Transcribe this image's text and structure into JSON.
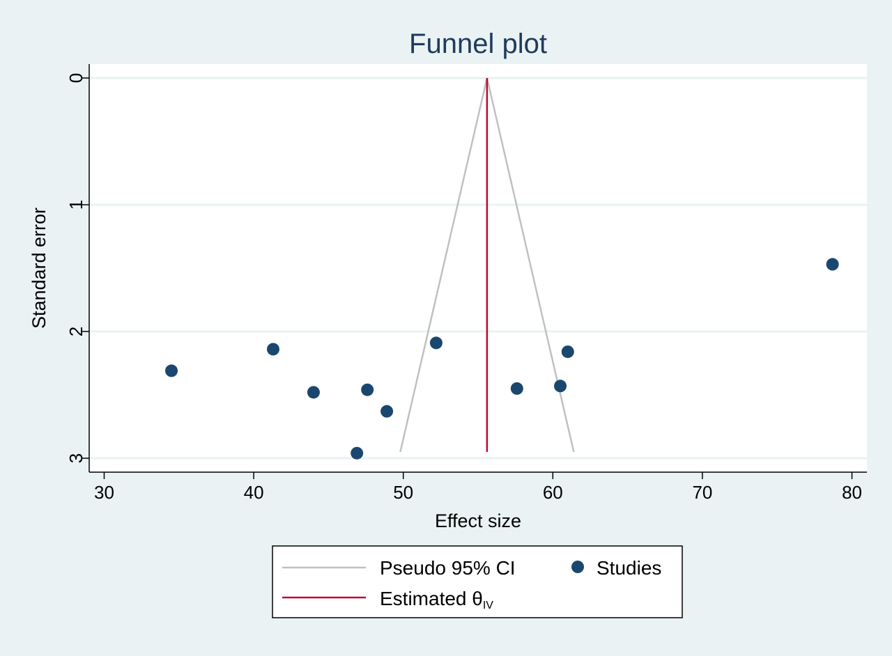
{
  "chart_data": {
    "type": "scatter",
    "title": "Funnel plot",
    "xlabel": "Effect size",
    "ylabel": "Standard error",
    "xlim": [
      29,
      81
    ],
    "ylim": [
      3.1,
      0
    ],
    "y_reversed": true,
    "x_ticks": [
      30,
      40,
      50,
      60,
      70,
      80
    ],
    "y_ticks": [
      0,
      1,
      2,
      3
    ],
    "grid": "horizontal",
    "legend_position": "bottom",
    "series": [
      {
        "name": "Studies",
        "kind": "scatter",
        "color": "#1a476f",
        "points": [
          {
            "x": 34.5,
            "y": 2.31
          },
          {
            "x": 41.3,
            "y": 2.14
          },
          {
            "x": 44.0,
            "y": 2.48
          },
          {
            "x": 46.9,
            "y": 2.96
          },
          {
            "x": 47.6,
            "y": 2.46
          },
          {
            "x": 48.9,
            "y": 2.63
          },
          {
            "x": 52.2,
            "y": 2.09
          },
          {
            "x": 57.6,
            "y": 2.45
          },
          {
            "x": 60.5,
            "y": 2.43
          },
          {
            "x": 61.0,
            "y": 2.16
          },
          {
            "x": 78.7,
            "y": 1.47
          }
        ]
      },
      {
        "name": "Pseudo 95% CI",
        "kind": "line",
        "color": "#c0c0c0",
        "lines": [
          [
            {
              "x": 49.8,
              "y": 2.95
            },
            {
              "x": 55.6,
              "y": 0
            }
          ],
          [
            {
              "x": 55.6,
              "y": 0
            },
            {
              "x": 61.4,
              "y": 2.95
            }
          ]
        ]
      },
      {
        "name": "Estimated θIV",
        "kind": "line",
        "color": "#c10534",
        "lines": [
          [
            {
              "x": 55.6,
              "y": 0
            },
            {
              "x": 55.6,
              "y": 2.95
            }
          ]
        ]
      }
    ]
  },
  "legend": {
    "ci_label": "Pseudo 95% CI",
    "studies_label": "Studies",
    "estimate_label": "Estimated θ",
    "estimate_subscript": "IV"
  }
}
